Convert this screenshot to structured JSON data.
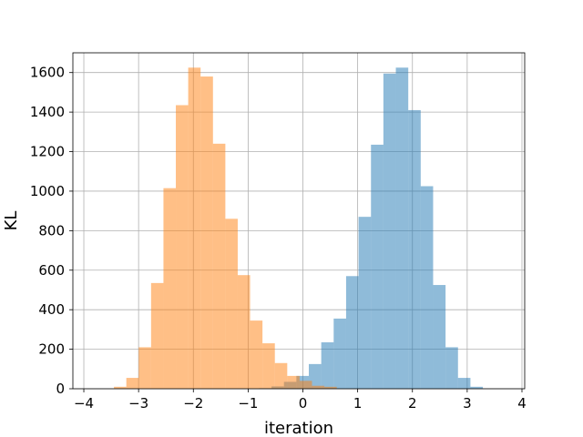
{
  "chart_data": {
    "type": "bar",
    "subtype": "overlapping-histogram",
    "xlabel": "iteration",
    "ylabel": "KL",
    "xlim": [
      -4.2,
      4.05
    ],
    "ylim": [
      0,
      1700
    ],
    "xticks": [
      -4,
      -3,
      -2,
      -1,
      0,
      1,
      2,
      3,
      4
    ],
    "yticks": [
      0,
      200,
      400,
      600,
      800,
      1000,
      1200,
      1400,
      1600
    ],
    "grid": true,
    "series": [
      {
        "color": "#1f77b4",
        "opacity": 0.5,
        "bin_edges": [
          -0.8,
          -0.573,
          -0.346,
          -0.119,
          0.108,
          0.335,
          0.562,
          0.789,
          1.016,
          1.243,
          1.47,
          1.697,
          1.924,
          2.151,
          2.378,
          2.605,
          2.832,
          3.059,
          3.286
        ],
        "values": [
          3,
          12,
          35,
          65,
          125,
          235,
          355,
          570,
          870,
          1235,
          1595,
          1625,
          1410,
          1025,
          525,
          210,
          55,
          10
        ]
      },
      {
        "color": "#ff7f0e",
        "opacity": 0.5,
        "bin_edges": [
          -3.45,
          -3.224,
          -2.998,
          -2.772,
          -2.546,
          -2.32,
          -2.094,
          -1.868,
          -1.642,
          -1.416,
          -1.19,
          -0.964,
          -0.738,
          -0.512,
          -0.286,
          -0.06,
          0.166,
          0.392,
          0.618
        ],
        "values": [
          10,
          55,
          210,
          535,
          1015,
          1435,
          1625,
          1580,
          1240,
          860,
          575,
          345,
          230,
          130,
          65,
          40,
          15,
          10
        ]
      }
    ]
  }
}
